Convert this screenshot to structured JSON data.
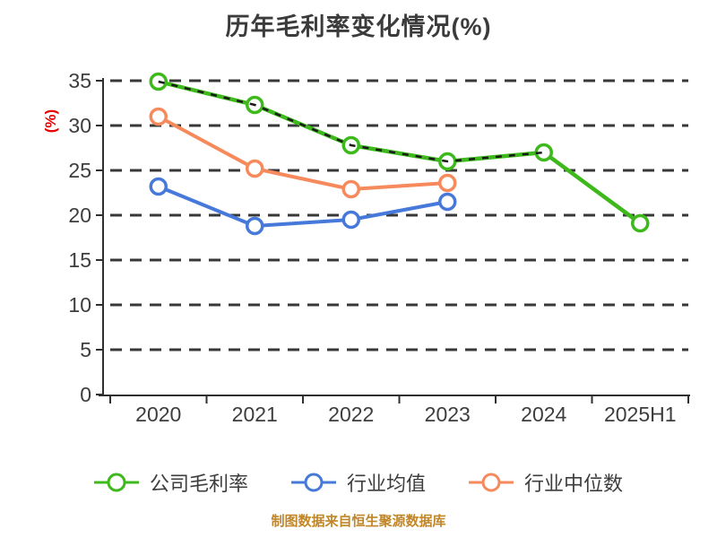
{
  "chart": {
    "title": "历年毛利率变化情况(%)",
    "footer": "制图数据来自恒生聚源数据库",
    "colors": {
      "title_text": "#3b3b3b",
      "tick_text": "#3d3d3d",
      "axis_line": "#2f2f2f",
      "gridline": "#383838",
      "ylabel_red": "#e60000",
      "footer_gold": "#c08628",
      "overlay_dash": "#1a1a1a",
      "marker_fill": "#ffffff"
    }
  },
  "chart_data": {
    "type": "line",
    "title": "历年毛利率变化情况(%)",
    "ylabel": "(%)",
    "xlabel": "",
    "ylim": [
      0,
      35
    ],
    "ytick_interval": 5,
    "ytick_labels": [
      "0",
      "5",
      "10",
      "15",
      "20",
      "25",
      "30",
      "35"
    ],
    "grid": "horizontal-dashed",
    "legend_position": "bottom",
    "categories": [
      "2020",
      "2021",
      "2022",
      "2023",
      "2024",
      "2025H1"
    ],
    "series": [
      {
        "name": "公司毛利率",
        "color": "#3db91c",
        "values": [
          34.9,
          32.3,
          27.8,
          26.0,
          27.0,
          19.1
        ],
        "dashed_overlay_from_index": 0,
        "dashed_overlay_to_index": 4
      },
      {
        "name": "行业均值",
        "color": "#4679d9",
        "values": [
          23.2,
          18.8,
          19.5,
          21.5
        ]
      },
      {
        "name": "行业中位数",
        "color": "#f68a5c",
        "values": [
          31.0,
          25.2,
          22.9,
          23.6
        ]
      }
    ],
    "annotations": []
  }
}
